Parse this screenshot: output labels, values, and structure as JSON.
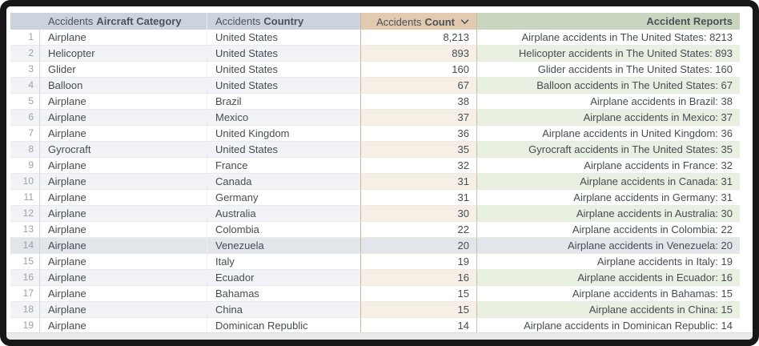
{
  "table": {
    "columns": {
      "row_number": {
        "label": ""
      },
      "category": {
        "prefix": "Accidents",
        "label": "Aircraft Category"
      },
      "country": {
        "prefix": "Accidents",
        "label": "Country"
      },
      "count": {
        "prefix": "Accidents",
        "label": "Count",
        "sort_direction": "desc"
      },
      "reports": {
        "label": "Accident Reports"
      }
    },
    "highlighted_row_number": 14,
    "rows": [
      {
        "n": "1",
        "category": "Airplane",
        "country": "United States",
        "count": "8,213",
        "report": "Airplane accidents in The United States: 8213"
      },
      {
        "n": "2",
        "category": "Helicopter",
        "country": "United States",
        "count": "893",
        "report": "Helicopter accidents in The United States: 893"
      },
      {
        "n": "3",
        "category": "Glider",
        "country": "United States",
        "count": "160",
        "report": "Glider accidents in The United States: 160"
      },
      {
        "n": "4",
        "category": "Balloon",
        "country": "United States",
        "count": "67",
        "report": "Balloon accidents in The United States: 67"
      },
      {
        "n": "5",
        "category": "Airplane",
        "country": "Brazil",
        "count": "38",
        "report": "Airplane accidents in Brazil: 38"
      },
      {
        "n": "6",
        "category": "Airplane",
        "country": "Mexico",
        "count": "37",
        "report": "Airplane accidents in Mexico: 37"
      },
      {
        "n": "7",
        "category": "Airplane",
        "country": "United Kingdom",
        "count": "36",
        "report": "Airplane accidents in United Kingdom: 36"
      },
      {
        "n": "8",
        "category": "Gyrocraft",
        "country": "United States",
        "count": "35",
        "report": "Gyrocraft accidents in The United States: 35"
      },
      {
        "n": "9",
        "category": "Airplane",
        "country": "France",
        "count": "32",
        "report": "Airplane accidents in France: 32"
      },
      {
        "n": "10",
        "category": "Airplane",
        "country": "Canada",
        "count": "31",
        "report": "Airplane accidents in Canada: 31"
      },
      {
        "n": "11",
        "category": "Airplane",
        "country": "Germany",
        "count": "31",
        "report": "Airplane accidents in Germany: 31"
      },
      {
        "n": "12",
        "category": "Airplane",
        "country": "Australia",
        "count": "30",
        "report": "Airplane accidents in Australia: 30"
      },
      {
        "n": "13",
        "category": "Airplane",
        "country": "Colombia",
        "count": "22",
        "report": "Airplane accidents in Colombia: 22"
      },
      {
        "n": "14",
        "category": "Airplane",
        "country": "Venezuela",
        "count": "20",
        "report": "Airplane accidents in Venezuela: 20"
      },
      {
        "n": "15",
        "category": "Airplane",
        "country": "Italy",
        "count": "19",
        "report": "Airplane accidents in Italy: 19"
      },
      {
        "n": "16",
        "category": "Airplane",
        "country": "Ecuador",
        "count": "16",
        "report": "Airplane accidents in Ecuador: 16"
      },
      {
        "n": "17",
        "category": "Airplane",
        "country": "Bahamas",
        "count": "15",
        "report": "Airplane accidents in Bahamas: 15"
      },
      {
        "n": "18",
        "category": "Airplane",
        "country": "China",
        "count": "15",
        "report": "Airplane accidents in China: 15"
      },
      {
        "n": "19",
        "category": "Airplane",
        "country": "Dominican Republic",
        "count": "14",
        "report": "Airplane accidents in Dominican Republic: 14"
      }
    ]
  },
  "colors": {
    "frame": "#171717",
    "header_default_bg": "#ccd3dc",
    "header_count_bg": "#e2cab1",
    "header_reports_bg": "#cad5bf",
    "stripe_default": "#f1f3f6",
    "stripe_count": "#f6efe5",
    "stripe_reports": "#e9efe1",
    "highlight_row": "#e2e5e9",
    "count_column_border": "#c9b79d",
    "reports_column_border": "#b9c6a6",
    "cell_text": "#454d54",
    "row_number_text": "#9aa1a9"
  }
}
